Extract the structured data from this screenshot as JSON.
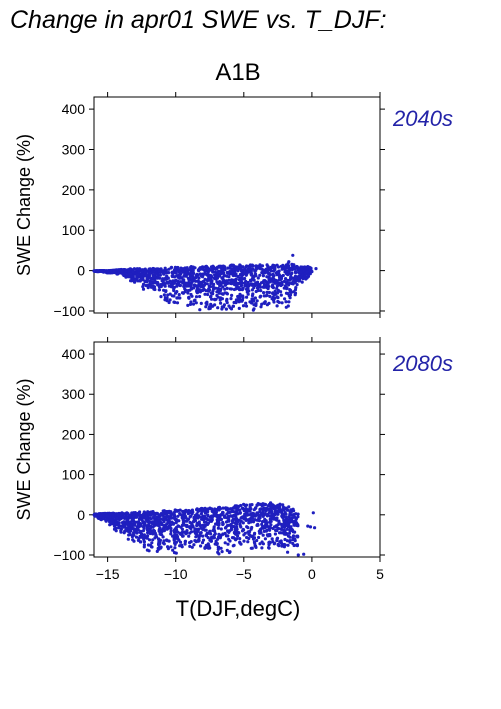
{
  "figure": {
    "title": "Change in apr01 SWE vs. T_DJF:",
    "scenario": "A1B",
    "xlabel": "T(DJF,degC)",
    "colors": {
      "points": "#1f1fbf",
      "period_label": "#2323a8",
      "axis": "#000000"
    }
  },
  "chart_data": [
    {
      "type": "scatter",
      "panel_label": "2040s",
      "ylabel": "SWE Change (%)",
      "xlim": [
        -16,
        5
      ],
      "ylim": [
        -105,
        430
      ],
      "xticks": [
        "-15",
        "-10",
        "-5",
        "0",
        "5"
      ],
      "yticks": [
        "-100",
        "0",
        "100",
        "200",
        "300",
        "400"
      ],
      "x_tick_values": [
        -15,
        -10,
        -5,
        0,
        5
      ],
      "y_tick_values": [
        -100,
        0,
        100,
        200,
        300,
        400
      ],
      "x_tick_labels_shown": false,
      "grid": false,
      "envelope": [
        [
          -16,
          -2,
          0
        ],
        [
          -15,
          -6,
          0
        ],
        [
          -14,
          -10,
          3
        ],
        [
          -13,
          -35,
          5
        ],
        [
          -12,
          -55,
          5
        ],
        [
          -11,
          -70,
          6
        ],
        [
          -10,
          -100,
          10
        ],
        [
          -9,
          -100,
          10
        ],
        [
          -8,
          -100,
          10
        ],
        [
          -7,
          -100,
          12
        ],
        [
          -6,
          -100,
          14
        ],
        [
          -5,
          -100,
          14
        ],
        [
          -4,
          -100,
          15
        ],
        [
          -3,
          -100,
          14
        ],
        [
          -2,
          -100,
          15
        ],
        [
          -1.5,
          -95,
          20
        ],
        [
          -1,
          -40,
          10
        ],
        [
          0,
          -8,
          8
        ]
      ],
      "outliers": [
        [
          -1.4,
          38
        ],
        [
          -1.7,
          22
        ],
        [
          -0.3,
          10
        ],
        [
          0.3,
          5
        ],
        [
          -2.1,
          -12
        ],
        [
          -0.8,
          -3
        ]
      ]
    },
    {
      "type": "scatter",
      "panel_label": "2080s",
      "ylabel": "SWE Change (%)",
      "xlim": [
        -16,
        5
      ],
      "ylim": [
        -105,
        430
      ],
      "xticks": [
        "-15",
        "-10",
        "-5",
        "0",
        "5"
      ],
      "yticks": [
        "-100",
        "0",
        "100",
        "200",
        "300",
        "400"
      ],
      "x_tick_values": [
        -15,
        -10,
        -5,
        0,
        5
      ],
      "y_tick_values": [
        -100,
        0,
        100,
        200,
        300,
        400
      ],
      "x_tick_labels_shown": true,
      "grid": false,
      "envelope": [
        [
          -16,
          -4,
          2
        ],
        [
          -15,
          -20,
          4
        ],
        [
          -14,
          -55,
          5
        ],
        [
          -13,
          -75,
          7
        ],
        [
          -12,
          -95,
          8
        ],
        [
          -11,
          -100,
          10
        ],
        [
          -10,
          -100,
          12
        ],
        [
          -9,
          -100,
          14
        ],
        [
          -8,
          -100,
          16
        ],
        [
          -7,
          -100,
          18
        ],
        [
          -6,
          -100,
          22
        ],
        [
          -5,
          -100,
          26
        ],
        [
          -4,
          -100,
          28
        ],
        [
          -3,
          -100,
          30
        ],
        [
          -2,
          -100,
          25
        ],
        [
          -1.5,
          -100,
          18
        ],
        [
          -1,
          -95,
          5
        ]
      ],
      "outliers": [
        [
          0.1,
          5
        ],
        [
          -0.1,
          -30
        ],
        [
          0.2,
          -32
        ],
        [
          -0.3,
          -28
        ],
        [
          -1.0,
          -100
        ],
        [
          -0.6,
          -98
        ]
      ]
    }
  ]
}
